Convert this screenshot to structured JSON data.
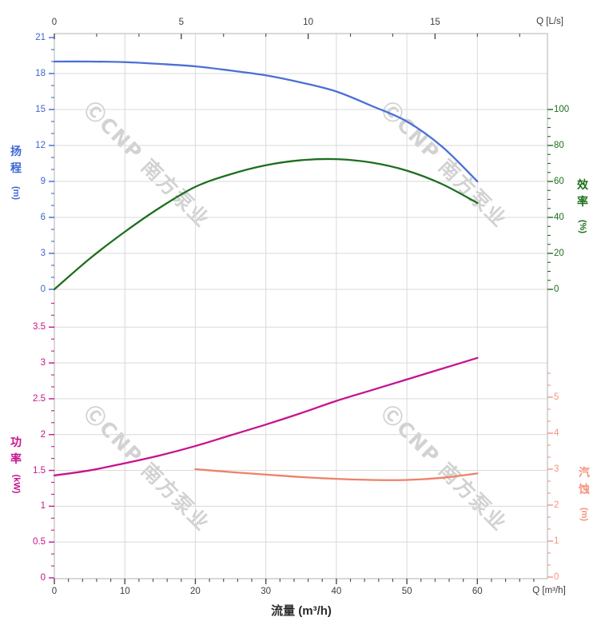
{
  "chart_data": {
    "type": "line",
    "title": "",
    "x_top": {
      "label": "Q [L/s]",
      "major_ticks": [
        0,
        5,
        10,
        15
      ],
      "minor_div": 3,
      "range": [
        0,
        19.4
      ]
    },
    "x_bottom": {
      "label": "Q [m³/h]",
      "title": "流量 (m³/h)",
      "major_ticks": [
        0,
        10,
        20,
        30,
        40,
        50,
        60
      ],
      "minor_div": 5,
      "range": [
        0,
        69.9
      ]
    },
    "panels": [
      {
        "id": "head-efficiency",
        "left_axis": {
          "name": "扬程",
          "chars": [
            "扬",
            "程"
          ],
          "unit": "(m)",
          "color": "#3e66d2",
          "major_ticks": [
            0,
            3,
            6,
            9,
            12,
            15,
            18,
            21
          ],
          "minor_div": 3,
          "ylim": [
            0,
            21
          ],
          "scale": "head"
        },
        "right_axis": {
          "name": "效率",
          "chars": [
            "效",
            "率"
          ],
          "unit": "(%)",
          "color": "#1d6f1d",
          "major_ticks": [
            0,
            20,
            40,
            60,
            80,
            100
          ],
          "minor_div": 4,
          "ylim": [
            0,
            100
          ],
          "scale": "eff"
        },
        "series": [
          {
            "name": "head-curve",
            "scale": "head",
            "color": "#4a6fd6",
            "points": [
              [
                0,
                19.0
              ],
              [
                5,
                19.0
              ],
              [
                10,
                18.95
              ],
              [
                15,
                18.8
              ],
              [
                20,
                18.6
              ],
              [
                25,
                18.25
              ],
              [
                30,
                17.85
              ],
              [
                35,
                17.25
              ],
              [
                40,
                16.5
              ],
              [
                45,
                15.3
              ],
              [
                50,
                14.0
              ],
              [
                55,
                11.9
              ],
              [
                60,
                9.0
              ]
            ]
          },
          {
            "name": "efficiency-curve",
            "scale": "eff",
            "color": "#1d6f1d",
            "points": [
              [
                0,
                0
              ],
              [
                5,
                17
              ],
              [
                10,
                32
              ],
              [
                15,
                45.5
              ],
              [
                20,
                57
              ],
              [
                25,
                64
              ],
              [
                30,
                69
              ],
              [
                35,
                71.8
              ],
              [
                40,
                72.4
              ],
              [
                45,
                70.5
              ],
              [
                50,
                66
              ],
              [
                55,
                58.5
              ],
              [
                60,
                48
              ]
            ]
          }
        ]
      },
      {
        "id": "power-npsh",
        "left_axis": {
          "name": "功率",
          "chars": [
            "功",
            "率"
          ],
          "unit": "(kW)",
          "color": "#c6148e",
          "major_ticks": [
            0,
            0.5,
            1,
            1.5,
            2,
            2.5,
            3,
            3.5
          ],
          "minor_div": 3,
          "ylim": [
            0,
            3.5
          ],
          "scale": "pow"
        },
        "right_axis": {
          "name": "汽蚀",
          "chars": [
            "汽",
            "蚀"
          ],
          "unit": "(m)",
          "color": "#f5937f",
          "major_ticks": [
            0,
            1,
            2,
            3,
            4,
            5
          ],
          "minor_div": 3,
          "ylim": [
            0,
            5
          ],
          "scale": "npsh"
        },
        "series": [
          {
            "name": "power-curve",
            "scale": "pow",
            "color": "#c6148e",
            "points": [
              [
                0,
                1.43
              ],
              [
                5,
                1.5
              ],
              [
                10,
                1.6
              ],
              [
                15,
                1.71
              ],
              [
                20,
                1.84
              ],
              [
                25,
                1.99
              ],
              [
                30,
                2.14
              ],
              [
                35,
                2.3
              ],
              [
                40,
                2.47
              ],
              [
                45,
                2.62
              ],
              [
                50,
                2.77
              ],
              [
                55,
                2.92
              ],
              [
                60,
                3.07
              ]
            ]
          },
          {
            "name": "npsh-curve",
            "scale": "npsh",
            "color": "#ee8168",
            "points": [
              [
                20,
                3.0
              ],
              [
                25,
                2.92
              ],
              [
                30,
                2.85
              ],
              [
                35,
                2.78
              ],
              [
                40,
                2.73
              ],
              [
                45,
                2.7
              ],
              [
                50,
                2.7
              ],
              [
                55,
                2.76
              ],
              [
                60,
                2.88
              ]
            ]
          }
        ]
      }
    ],
    "watermark": {
      "text": "ⒸCNP 南方泵业"
    }
  }
}
